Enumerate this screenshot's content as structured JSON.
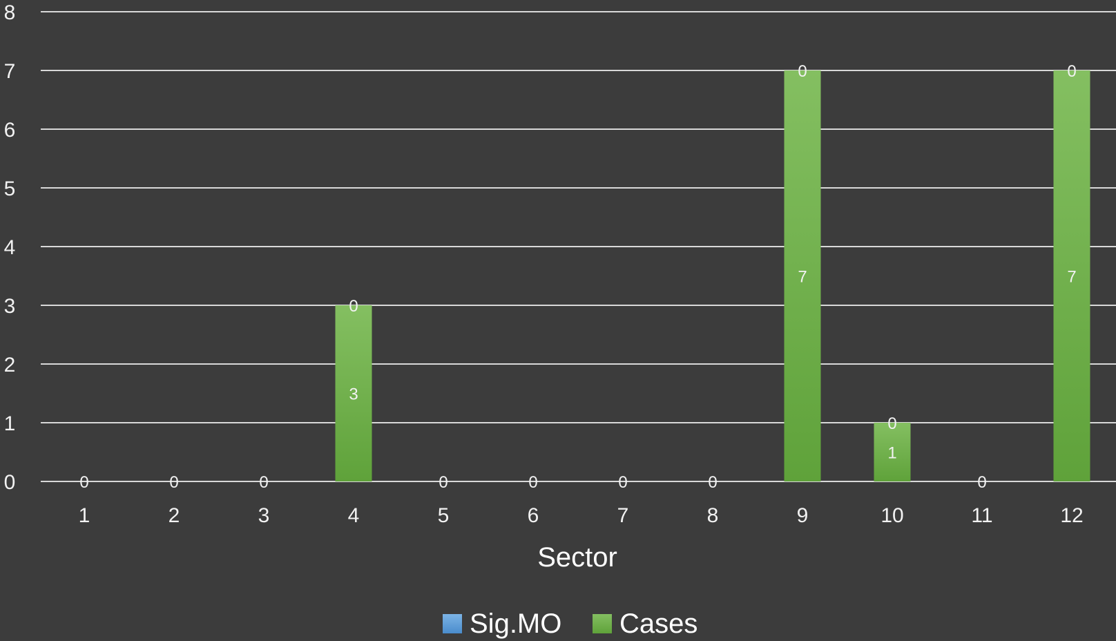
{
  "chart_data": {
    "type": "bar",
    "stacked": true,
    "title": "",
    "xlabel": "Sector",
    "ylabel": "",
    "categories": [
      "1",
      "2",
      "3",
      "4",
      "5",
      "6",
      "7",
      "8",
      "9",
      "10",
      "11",
      "12"
    ],
    "ylim": [
      0,
      8
    ],
    "yticks": [
      "0",
      "1",
      "2",
      "3",
      "4",
      "5",
      "6",
      "7",
      "8"
    ],
    "grid": true,
    "legend_position": "bottom",
    "series": [
      {
        "name": "Cases",
        "color": "#70ad47",
        "values": [
          0,
          0,
          0,
          3,
          0,
          0,
          0,
          0,
          7,
          1,
          0,
          7
        ],
        "labels": [
          "",
          "",
          "",
          "3",
          "",
          "",
          "",
          "",
          "7",
          "1",
          "",
          "7"
        ]
      },
      {
        "name": "Sig.MO",
        "color": "#5b9bd5",
        "values": [
          0,
          0,
          0,
          0,
          0,
          0,
          0,
          0,
          0,
          0,
          0,
          0
        ],
        "labels": [
          "0",
          "0",
          "0",
          "0",
          "0",
          "0",
          "0",
          "0",
          "0",
          "0",
          "0",
          "0"
        ]
      }
    ],
    "legend": [
      {
        "name": "Sig.MO",
        "color": "#5b9bd5"
      },
      {
        "name": "Cases",
        "color": "#70ad47"
      }
    ]
  }
}
